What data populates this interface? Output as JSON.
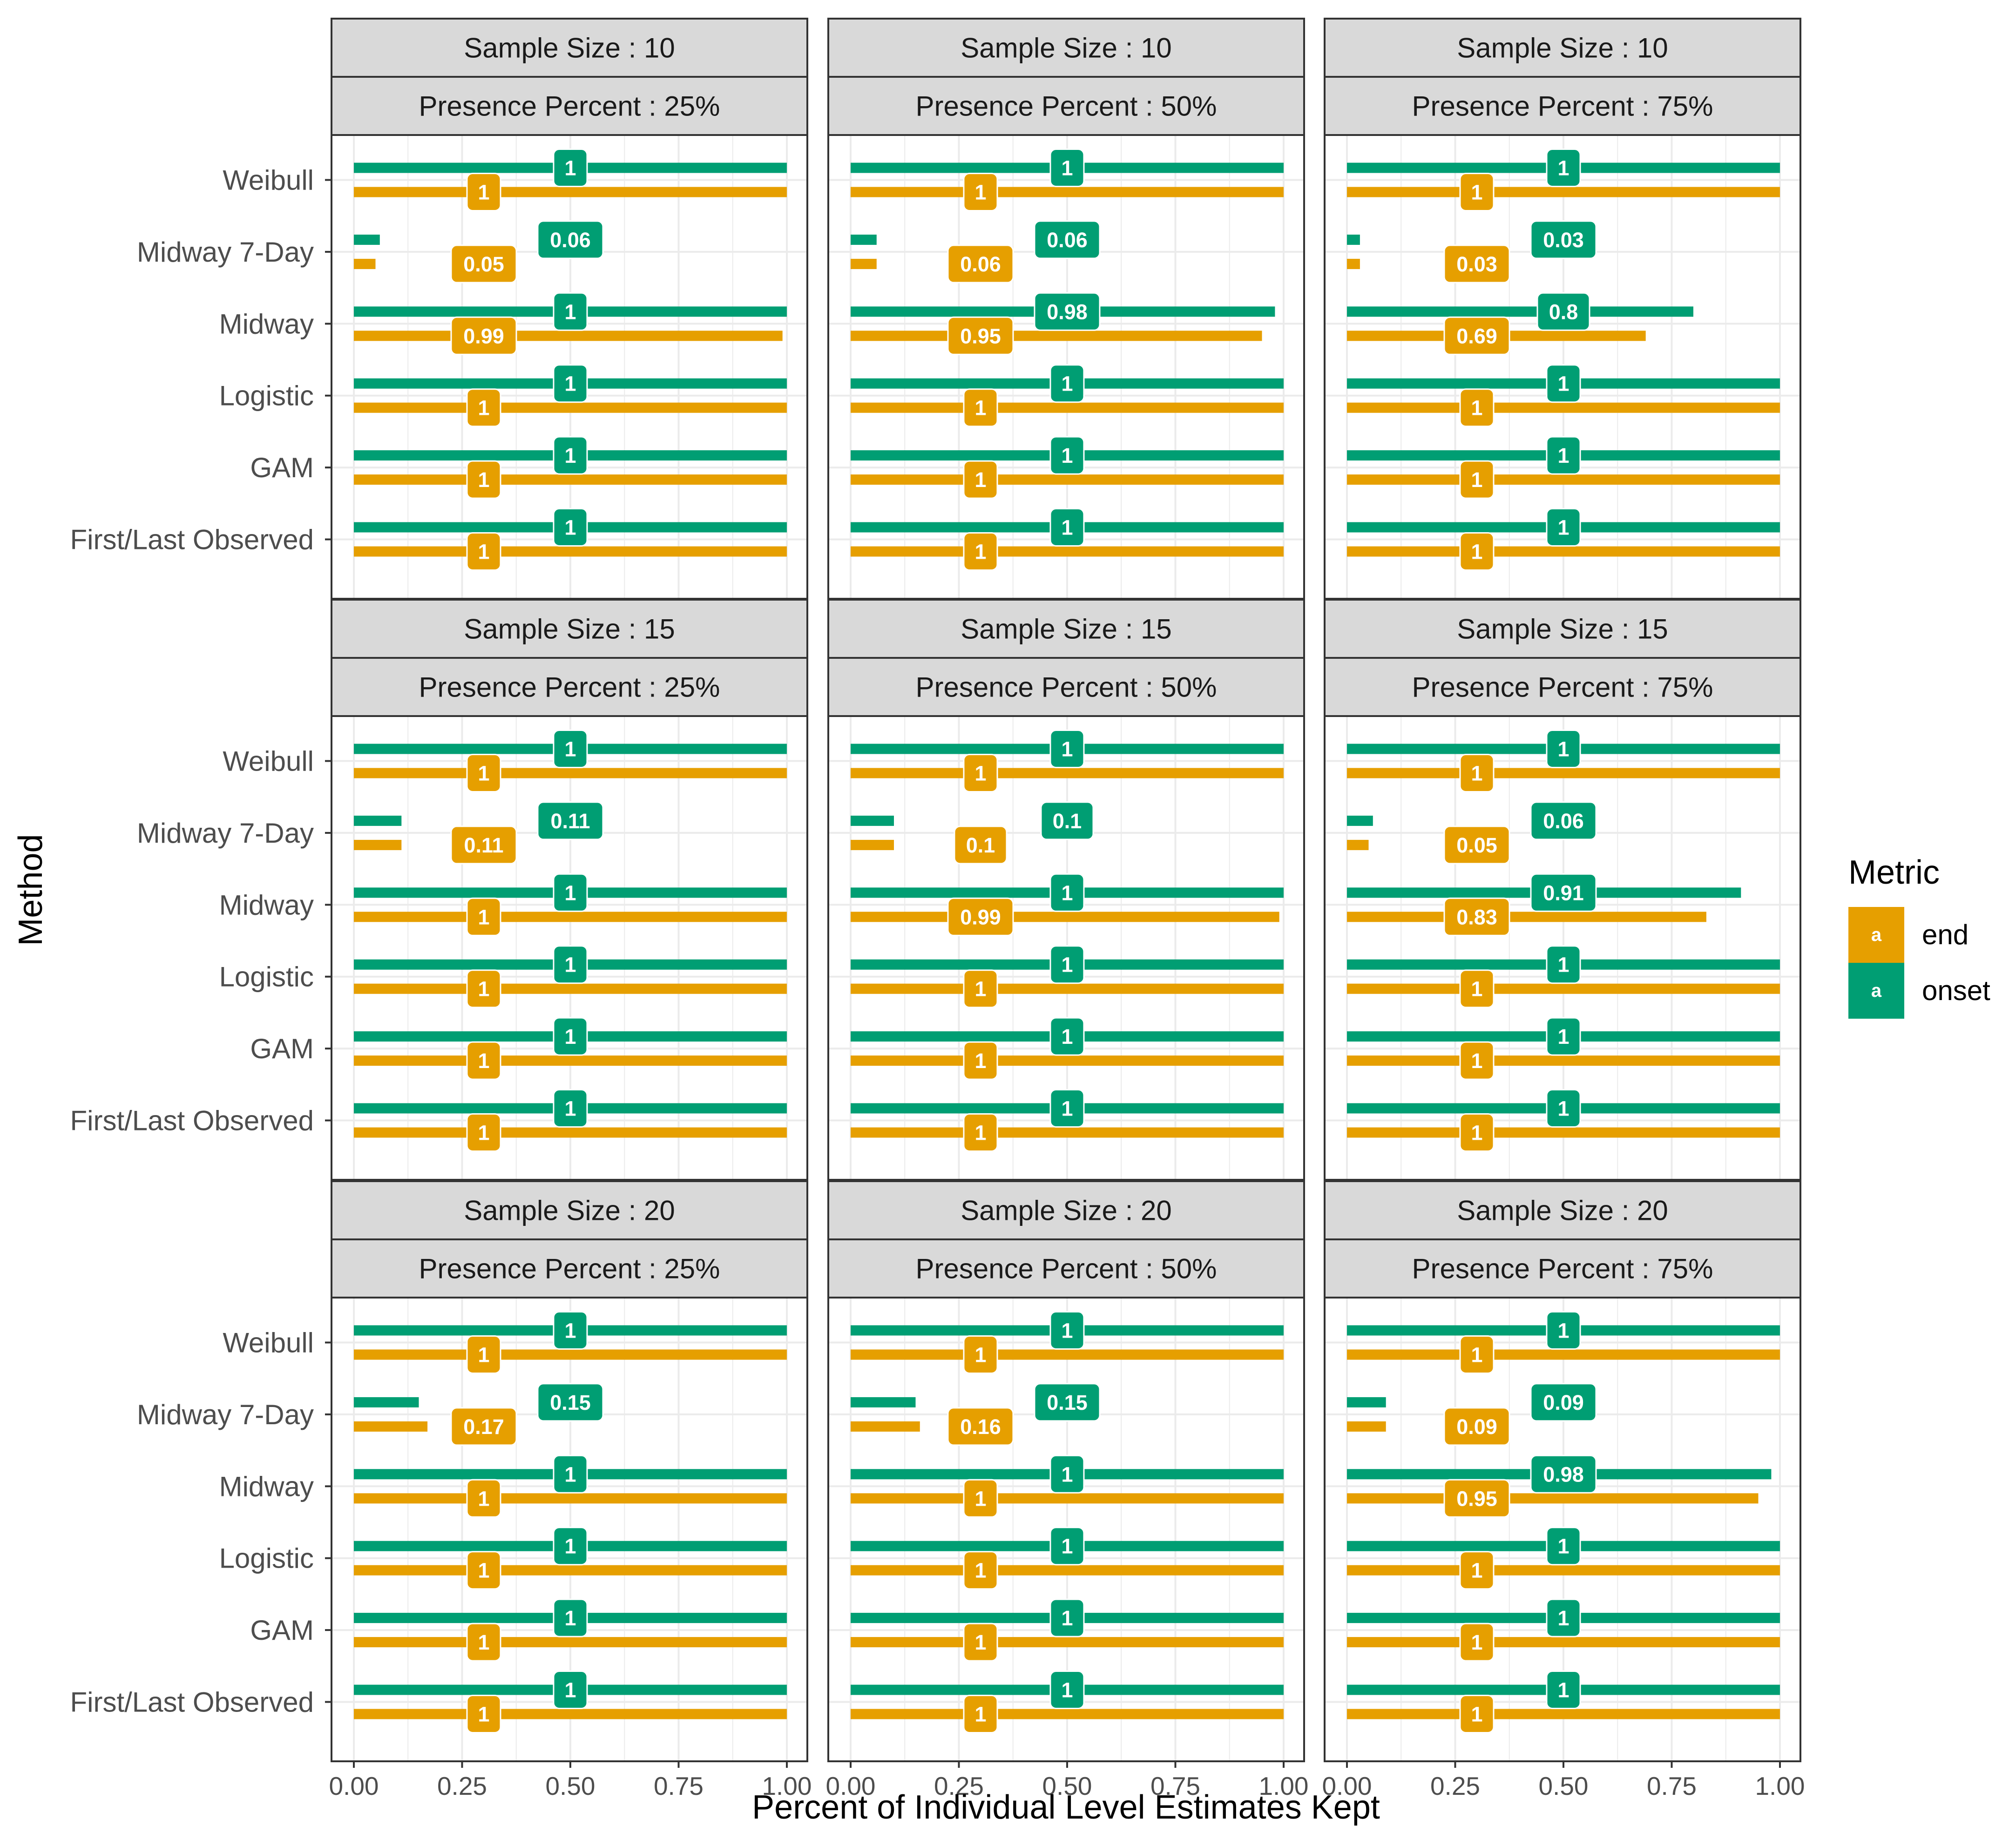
{
  "chart_data": {
    "type": "bar",
    "orientation": "horizontal",
    "xlabel": "Percent of Individual Level Estimates Kept",
    "ylabel": "Method",
    "xlim": [
      0,
      1
    ],
    "x_ticks": [
      "0.00",
      "0.25",
      "0.50",
      "0.75",
      "1.00"
    ],
    "categories": [
      "Weibull",
      "Midway 7-Day",
      "Midway",
      "Logistic",
      "GAM",
      "First/Last Observed"
    ],
    "row_facet_prefix": "Sample Size : ",
    "col_facet_prefix": "Presence Percent : ",
    "facet_rows": [
      "10",
      "15",
      "20"
    ],
    "facet_cols": [
      "25%",
      "50%",
      "75%"
    ],
    "grid": true,
    "legend": {
      "title": "Metric",
      "position": "right",
      "glyph": "a",
      "entries": [
        {
          "name": "end",
          "color": "#E69F00"
        },
        {
          "name": "onset",
          "color": "#009E73"
        }
      ]
    },
    "panels": [
      {
        "sample_size": "10",
        "presence": "25%",
        "series": [
          {
            "name": "onset",
            "values": [
              1,
              0.06,
              1,
              1,
              1,
              1
            ]
          },
          {
            "name": "end",
            "values": [
              1,
              0.05,
              0.99,
              1,
              1,
              1
            ]
          }
        ]
      },
      {
        "sample_size": "10",
        "presence": "50%",
        "series": [
          {
            "name": "onset",
            "values": [
              1,
              0.06,
              0.98,
              1,
              1,
              1
            ]
          },
          {
            "name": "end",
            "values": [
              1,
              0.06,
              0.95,
              1,
              1,
              1
            ]
          }
        ]
      },
      {
        "sample_size": "10",
        "presence": "75%",
        "series": [
          {
            "name": "onset",
            "values": [
              1,
              0.03,
              0.8,
              1,
              1,
              1
            ]
          },
          {
            "name": "end",
            "values": [
              1,
              0.03,
              0.69,
              1,
              1,
              1
            ]
          }
        ]
      },
      {
        "sample_size": "15",
        "presence": "25%",
        "series": [
          {
            "name": "onset",
            "values": [
              1,
              0.11,
              1,
              1,
              1,
              1
            ]
          },
          {
            "name": "end",
            "values": [
              1,
              0.11,
              1,
              1,
              1,
              1
            ]
          }
        ]
      },
      {
        "sample_size": "15",
        "presence": "50%",
        "series": [
          {
            "name": "onset",
            "values": [
              1,
              0.1,
              1,
              1,
              1,
              1
            ]
          },
          {
            "name": "end",
            "values": [
              1,
              0.1,
              0.99,
              1,
              1,
              1
            ]
          }
        ]
      },
      {
        "sample_size": "15",
        "presence": "75%",
        "series": [
          {
            "name": "onset",
            "values": [
              1,
              0.06,
              0.91,
              1,
              1,
              1
            ]
          },
          {
            "name": "end",
            "values": [
              1,
              0.05,
              0.83,
              1,
              1,
              1
            ]
          }
        ]
      },
      {
        "sample_size": "20",
        "presence": "25%",
        "series": [
          {
            "name": "onset",
            "values": [
              1,
              0.15,
              1,
              1,
              1,
              1
            ]
          },
          {
            "name": "end",
            "values": [
              1,
              0.17,
              1,
              1,
              1,
              1
            ]
          }
        ]
      },
      {
        "sample_size": "20",
        "presence": "50%",
        "series": [
          {
            "name": "onset",
            "values": [
              1,
              0.15,
              1,
              1,
              1,
              1
            ]
          },
          {
            "name": "end",
            "values": [
              1,
              0.16,
              1,
              1,
              1,
              1
            ]
          }
        ]
      },
      {
        "sample_size": "20",
        "presence": "75%",
        "series": [
          {
            "name": "onset",
            "values": [
              1,
              0.09,
              0.98,
              1,
              1,
              1
            ]
          },
          {
            "name": "end",
            "values": [
              1,
              0.09,
              0.95,
              1,
              1,
              1
            ]
          }
        ]
      }
    ]
  }
}
